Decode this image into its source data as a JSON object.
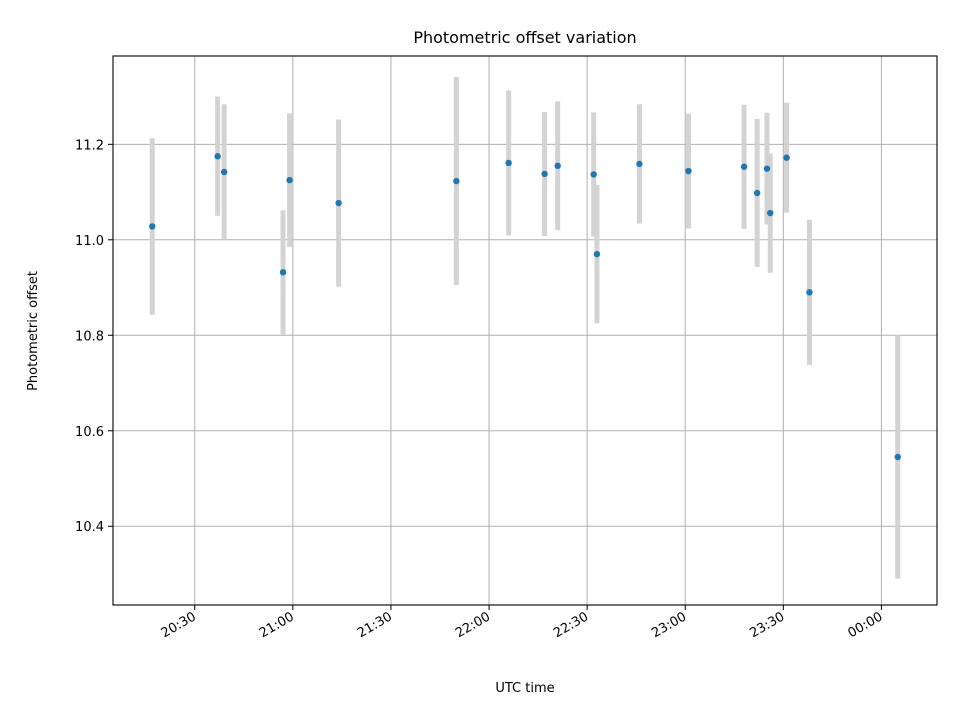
{
  "chart_data": {
    "type": "scatter",
    "title": "Photometric offset variation",
    "xlabel": "UTC time",
    "ylabel": "Photometric offset",
    "grid": true,
    "x_ticks": [
      "20:30",
      "21:00",
      "21:30",
      "22:00",
      "22:30",
      "23:00",
      "23:30",
      "00:00"
    ],
    "y_ticks": [
      "10.4",
      "10.6",
      "10.8",
      "11.0",
      "11.2"
    ],
    "y_tick_values": [
      10.4,
      10.6,
      10.8,
      11.0,
      11.2
    ],
    "xlim": [
      "20:05",
      "00:17"
    ],
    "ylim": [
      10.235,
      11.385
    ],
    "point_color": "#1f77b4",
    "errorbar_color": "#d3d3d3",
    "series": [
      {
        "x": [
          "20:17",
          "20:37",
          "20:39",
          "20:57",
          "20:59",
          "21:14",
          "21:50",
          "22:06",
          "22:17",
          "22:21",
          "22:32",
          "22:33",
          "22:46",
          "23:01",
          "23:18",
          "23:22",
          "23:25",
          "23:26",
          "23:31",
          "23:38",
          "00:05"
        ],
        "y": [
          11.028,
          11.175,
          11.142,
          10.932,
          11.125,
          11.077,
          11.123,
          11.161,
          11.138,
          11.155,
          11.137,
          10.97,
          11.159,
          11.144,
          11.153,
          11.098,
          11.149,
          11.056,
          11.172,
          10.89,
          10.545
        ],
        "err": [
          0.185,
          0.125,
          0.142,
          0.13,
          0.14,
          0.175,
          0.218,
          0.152,
          0.13,
          0.135,
          0.13,
          0.145,
          0.125,
          0.12,
          0.13,
          0.155,
          0.117,
          0.125,
          0.115,
          0.152,
          0.255
        ]
      }
    ]
  }
}
